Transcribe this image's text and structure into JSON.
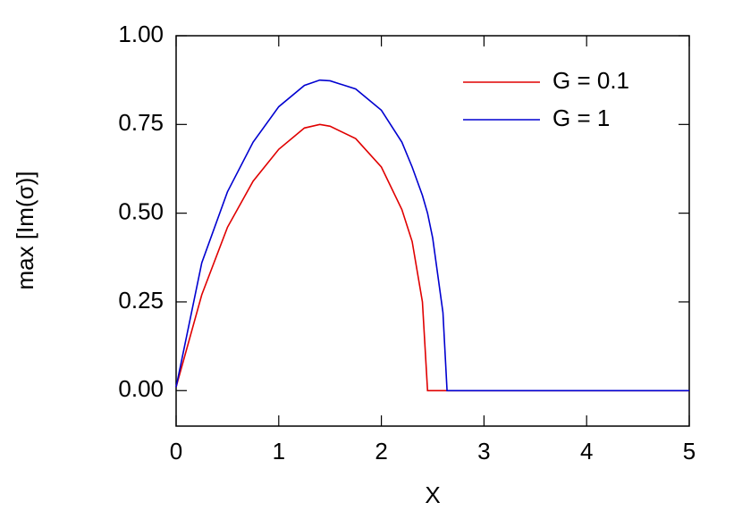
{
  "chart_data": {
    "type": "line",
    "xlabel": "X",
    "ylabel": "max [Im(σ)]",
    "x": [
      0,
      0.25,
      0.5,
      0.75,
      1,
      1.25,
      1.4,
      1.5,
      1.75,
      2,
      2.2,
      2.3,
      2.4,
      2.45,
      2.5,
      2.6,
      2.64,
      3,
      4,
      5
    ],
    "series": [
      {
        "name": "G = 0.1",
        "color": "#e00000",
        "values": [
          0.01,
          0.27,
          0.46,
          0.59,
          0.68,
          0.74,
          0.75,
          0.745,
          0.71,
          0.63,
          0.51,
          0.42,
          0.25,
          0,
          0,
          0,
          0,
          0,
          0,
          0
        ]
      },
      {
        "name": "G = 1",
        "color": "#0000d0",
        "values": [
          0.01,
          0.36,
          0.56,
          0.7,
          0.8,
          0.86,
          0.875,
          0.873,
          0.85,
          0.79,
          0.7,
          0.63,
          0.55,
          0.5,
          0.43,
          0.22,
          0,
          0,
          0,
          0
        ]
      }
    ],
    "xlim": [
      0,
      5
    ],
    "xticks": [
      0,
      1,
      2,
      3,
      4,
      5
    ],
    "ylim": [
      -0.1,
      1.0
    ],
    "yticks": [
      {
        "value": 0,
        "label": "0.00"
      },
      {
        "value": 0.25,
        "label": "0.25"
      },
      {
        "value": 0.5,
        "label": "0.50"
      },
      {
        "value": 0.75,
        "label": "0.75"
      },
      {
        "value": 1,
        "label": "1.00"
      }
    ],
    "grid": false,
    "legend": "upper right"
  }
}
